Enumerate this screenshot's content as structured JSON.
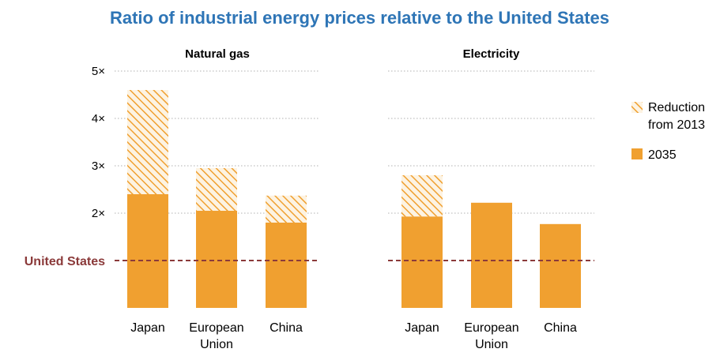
{
  "colors": {
    "title": "#2e75b6",
    "bar": "#f0a030",
    "hatch": "#f0a030",
    "hatch_bg": "#fdf3e2",
    "grid": "#b0b0b0",
    "reference": "#8b3a3a",
    "text": "#000000"
  },
  "chart_data": {
    "type": "bar",
    "title": "Ratio of industrial energy prices relative to the United States",
    "stacked": true,
    "ylim": [
      0,
      5
    ],
    "yticks": [
      2,
      3,
      4,
      5
    ],
    "ytick_labels": [
      "2×",
      "3×",
      "4×",
      "5×"
    ],
    "grid": "horizontal dotted",
    "reference_line": {
      "label": "United States",
      "value": 1
    },
    "legend": {
      "placement": "right",
      "entries": [
        {
          "key": "reduction",
          "label_lines": [
            "Reduction",
            "from 2013"
          ],
          "style": "hatched"
        },
        {
          "key": "2035",
          "label_lines": [
            "2035"
          ],
          "style": "solid"
        }
      ]
    },
    "panels": [
      {
        "title": "Natural gas",
        "categories": [
          {
            "name": "Japan",
            "label_lines": [
              "Japan"
            ]
          },
          {
            "name": "European Union",
            "label_lines": [
              "European",
              "Union"
            ]
          },
          {
            "name": "China",
            "label_lines": [
              "China"
            ]
          }
        ],
        "series": [
          {
            "name": "2035",
            "values": [
              2.4,
              2.05,
              1.8
            ]
          },
          {
            "name": "Reduction from 2013",
            "values": [
              2.2,
              0.9,
              0.57
            ]
          }
        ]
      },
      {
        "title": "Electricity",
        "categories": [
          {
            "name": "Japan",
            "label_lines": [
              "Japan"
            ]
          },
          {
            "name": "European Union",
            "label_lines": [
              "European",
              "Union"
            ]
          },
          {
            "name": "China",
            "label_lines": [
              "China"
            ]
          }
        ],
        "series": [
          {
            "name": "2035",
            "values": [
              1.93,
              2.22,
              1.77
            ]
          },
          {
            "name": "Reduction from 2013",
            "values": [
              0.87,
              0,
              0
            ]
          }
        ]
      }
    ]
  }
}
